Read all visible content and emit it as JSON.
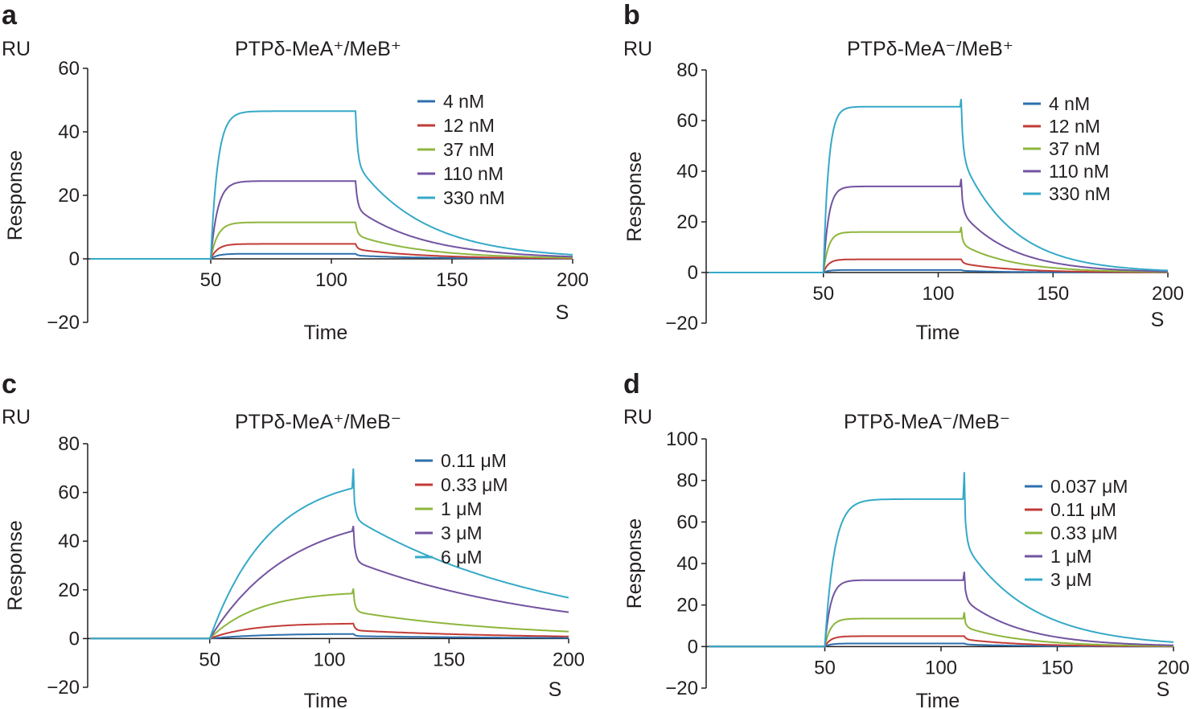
{
  "panels": [
    {
      "letter": "a",
      "ru": "RU"
    },
    {
      "letter": "b",
      "ru": "RU"
    },
    {
      "letter": "c",
      "ru": "RU"
    },
    {
      "letter": "d",
      "ru": "RU"
    }
  ],
  "chart_data": [
    {
      "type": "line",
      "title": "PTPδ-MeA⁺/MeB⁺",
      "xlabel": "Time",
      "xunit": "S",
      "ylabel": "Response",
      "yunit": "RU",
      "xlim": [
        0,
        200
      ],
      "ylim": [
        -20,
        60
      ],
      "xticks": [
        50,
        100,
        150,
        200
      ],
      "yticks": [
        60,
        40,
        20,
        0,
        -20
      ],
      "ytick_labels": [
        "60",
        "40",
        "20",
        "0",
        "−20"
      ],
      "injection": [
        50,
        110
      ],
      "series": [
        {
          "name": "4 nM",
          "color": "#2d6fad",
          "plateau": 1.6,
          "kon": 0.35,
          "koff": 0.035,
          "dropFrac": 0.35,
          "spike": 0
        },
        {
          "name": "12 nM",
          "color": "#c23b36",
          "plateau": 4.7,
          "kon": 0.35,
          "koff": 0.035,
          "dropFrac": 0.35,
          "spike": 0
        },
        {
          "name": "37 nM",
          "color": "#8db63c",
          "plateau": 11.5,
          "kon": 0.35,
          "koff": 0.035,
          "dropFrac": 0.35,
          "spike": 0
        },
        {
          "name": "110 nM",
          "color": "#7253a0",
          "plateau": 24.5,
          "kon": 0.35,
          "koff": 0.035,
          "dropFrac": 0.35,
          "spike": 0
        },
        {
          "name": "330 nM",
          "color": "#35a9c8",
          "plateau": 46.5,
          "kon": 0.35,
          "koff": 0.035,
          "dropFrac": 0.35,
          "spike": 0
        }
      ]
    },
    {
      "type": "line",
      "title": "PTPδ-MeA⁻/MeB⁺",
      "xlabel": "Time",
      "xunit": "S",
      "ylabel": "Response",
      "yunit": "RU",
      "xlim": [
        0,
        200
      ],
      "ylim": [
        -20,
        80
      ],
      "xticks": [
        50,
        100,
        150,
        200
      ],
      "yticks": [
        80,
        60,
        40,
        20,
        0,
        -20
      ],
      "ytick_labels": [
        "80",
        "60",
        "40",
        "20",
        "0",
        "−20"
      ],
      "injection": [
        50,
        110
      ],
      "series": [
        {
          "name": "4 nM",
          "color": "#2d6fad",
          "plateau": 1.0,
          "kon": 0.45,
          "koff": 0.045,
          "dropFrac": 0.3,
          "spike": 0
        },
        {
          "name": "12 nM",
          "color": "#c23b36",
          "plateau": 5.2,
          "kon": 0.45,
          "koff": 0.045,
          "dropFrac": 0.3,
          "spike": 0
        },
        {
          "name": "37 nM",
          "color": "#8db63c",
          "plateau": 16,
          "kon": 0.45,
          "koff": 0.045,
          "dropFrac": 0.3,
          "spike": 2
        },
        {
          "name": "110 nM",
          "color": "#7253a0",
          "plateau": 34,
          "kon": 0.45,
          "koff": 0.045,
          "dropFrac": 0.3,
          "spike": 3
        },
        {
          "name": "330 nM",
          "color": "#35a9c8",
          "plateau": 65.5,
          "kon": 0.45,
          "koff": 0.045,
          "dropFrac": 0.3,
          "spike": 3
        }
      ]
    },
    {
      "type": "line",
      "title": "PTPδ-MeA⁺/MeB⁻",
      "xlabel": "Time",
      "xunit": "S",
      "ylabel": "Response",
      "yunit": "RU",
      "xlim": [
        0,
        200
      ],
      "ylim": [
        -20,
        80
      ],
      "xticks": [
        50,
        100,
        150,
        200
      ],
      "yticks": [
        80,
        60,
        40,
        20,
        0,
        -20
      ],
      "ytick_labels": [
        "80",
        "60",
        "40",
        "20",
        "0",
        "−20"
      ],
      "injection": [
        50,
        110
      ],
      "series": [
        {
          "name": "0.11 μM",
          "color": "#2d6fad",
          "plateau": 2.0,
          "kon": 0.05,
          "koff": 0.015,
          "dropFrac": 0.45,
          "spike": 0
        },
        {
          "name": "0.33 μM",
          "color": "#c23b36",
          "plateau": 6.3,
          "kon": 0.06,
          "koff": 0.015,
          "dropFrac": 0.45,
          "spike": 0
        },
        {
          "name": "1 μM",
          "color": "#8db63c",
          "plateau": 19.5,
          "kon": 0.05,
          "koff": 0.015,
          "dropFrac": 0.4,
          "spike": 2
        },
        {
          "name": "3 μM",
          "color": "#7253a0",
          "plateau": 53,
          "kon": 0.03,
          "koff": 0.012,
          "dropFrac": 0.28,
          "spike": 2
        },
        {
          "name": "6 μM",
          "color": "#35a9c8",
          "plateau": 68,
          "kon": 0.04,
          "koff": 0.012,
          "dropFrac": 0.2,
          "spike": 8
        }
      ]
    },
    {
      "type": "line",
      "title": "PTPδ-MeA⁻/MeB⁻",
      "xlabel": "Time",
      "xunit": "S",
      "ylabel": "Response",
      "yunit": "RU",
      "xlim": [
        0,
        200
      ],
      "ylim": [
        -20,
        100
      ],
      "xticks": [
        50,
        100,
        150,
        200
      ],
      "yticks": [
        100,
        80,
        60,
        40,
        20,
        0,
        -20
      ],
      "ytick_labels": [
        "100",
        "80",
        "60",
        "40",
        "20",
        "0",
        "−20"
      ],
      "injection": [
        50,
        110
      ],
      "series": [
        {
          "name": "0.037 μM",
          "color": "#2d6fad",
          "plateau": 1.5,
          "kon": 0.4,
          "koff": 0.04,
          "dropFrac": 0.3,
          "spike": 0
        },
        {
          "name": "0.11 μM",
          "color": "#c23b36",
          "plateau": 5.0,
          "kon": 0.4,
          "koff": 0.04,
          "dropFrac": 0.3,
          "spike": 0
        },
        {
          "name": "0.33 μM",
          "color": "#8db63c",
          "plateau": 13.5,
          "kon": 0.4,
          "koff": 0.04,
          "dropFrac": 0.3,
          "spike": 3
        },
        {
          "name": "1 μM",
          "color": "#7253a0",
          "plateau": 32,
          "kon": 0.4,
          "koff": 0.04,
          "dropFrac": 0.3,
          "spike": 4
        },
        {
          "name": "3 μM",
          "color": "#35a9c8",
          "plateau": 71,
          "kon": 0.25,
          "koff": 0.035,
          "dropFrac": 0.3,
          "spike": 13
        }
      ]
    }
  ]
}
